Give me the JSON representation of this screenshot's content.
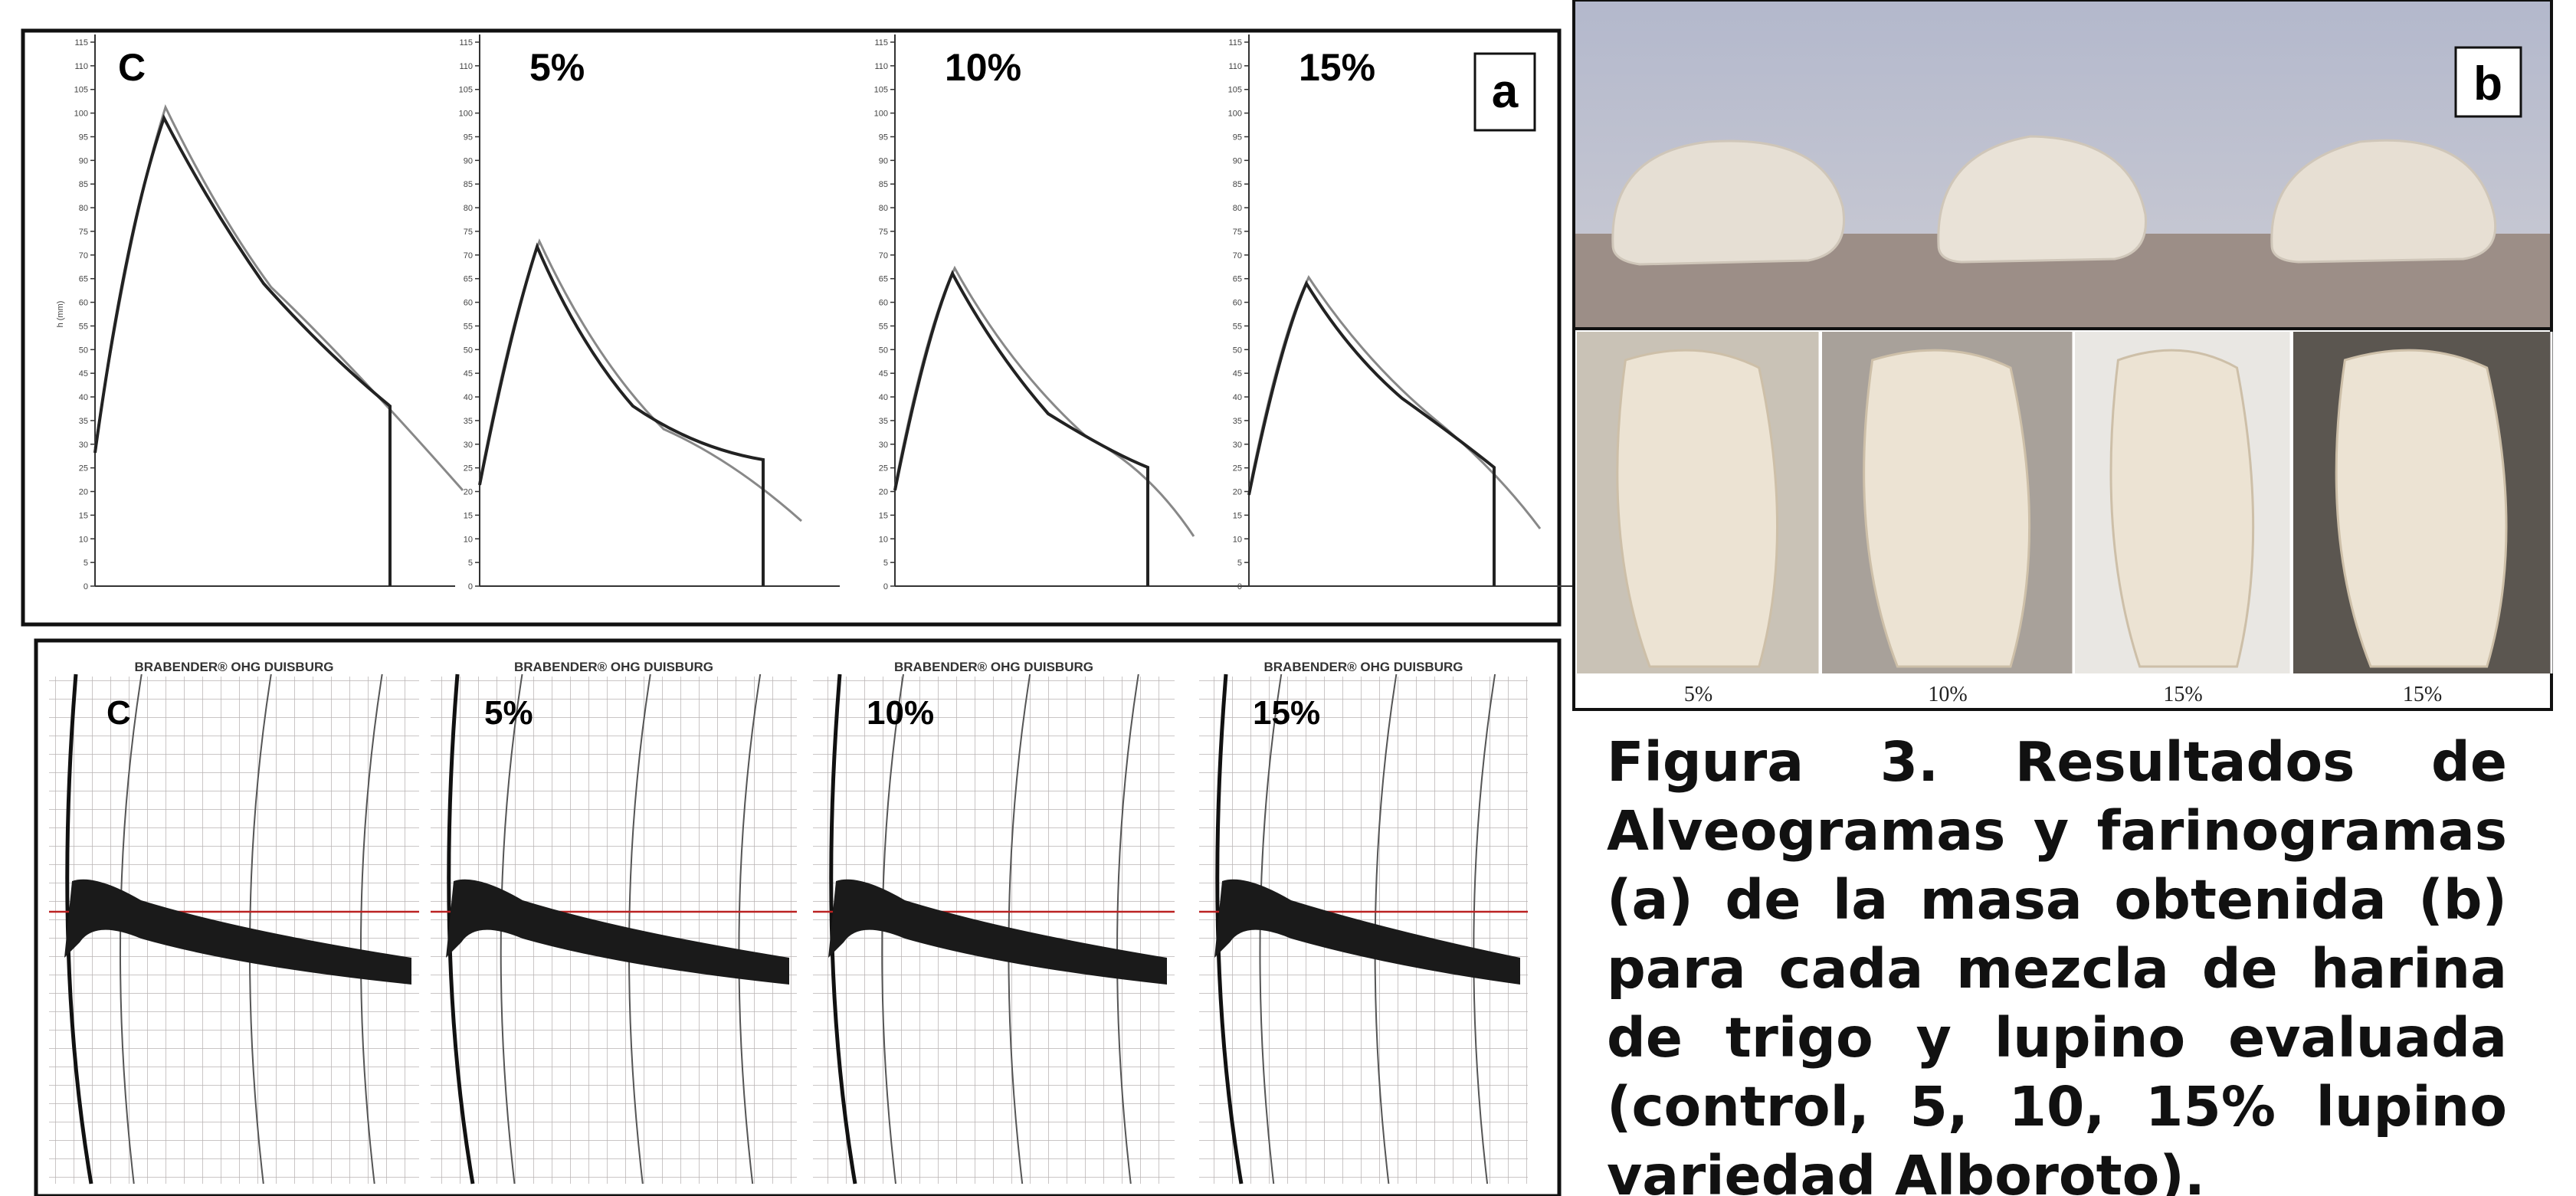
{
  "panel_a": {
    "label": "a",
    "y_axis_label": "h (mm)",
    "plots": [
      {
        "label": "C"
      },
      {
        "label": "5%"
      },
      {
        "label": "10%"
      },
      {
        "label": "15%"
      }
    ],
    "yticks": [
      0,
      5,
      10,
      15,
      20,
      25,
      30,
      35,
      40,
      45,
      50,
      55,
      60,
      65,
      70,
      75,
      80,
      85,
      90,
      95,
      100,
      105,
      110,
      115
    ]
  },
  "farinograms": {
    "header": "BRABENDER® OHG DUISBURG",
    "plots": [
      {
        "label": "C"
      },
      {
        "label": "5%"
      },
      {
        "label": "10%"
      },
      {
        "label": "15%"
      }
    ]
  },
  "panel_b": {
    "label": "b",
    "captions": [
      "5%",
      "10%",
      "15%",
      "15%"
    ]
  },
  "caption": "Figura 3. Resultados de Alveogramas y farinogramas (a) de la masa obtenida (b) para cada mezcla de harina de trigo y lupino evaluada (control, 5, 10, 15% lupino variedad Alboroto)."
}
